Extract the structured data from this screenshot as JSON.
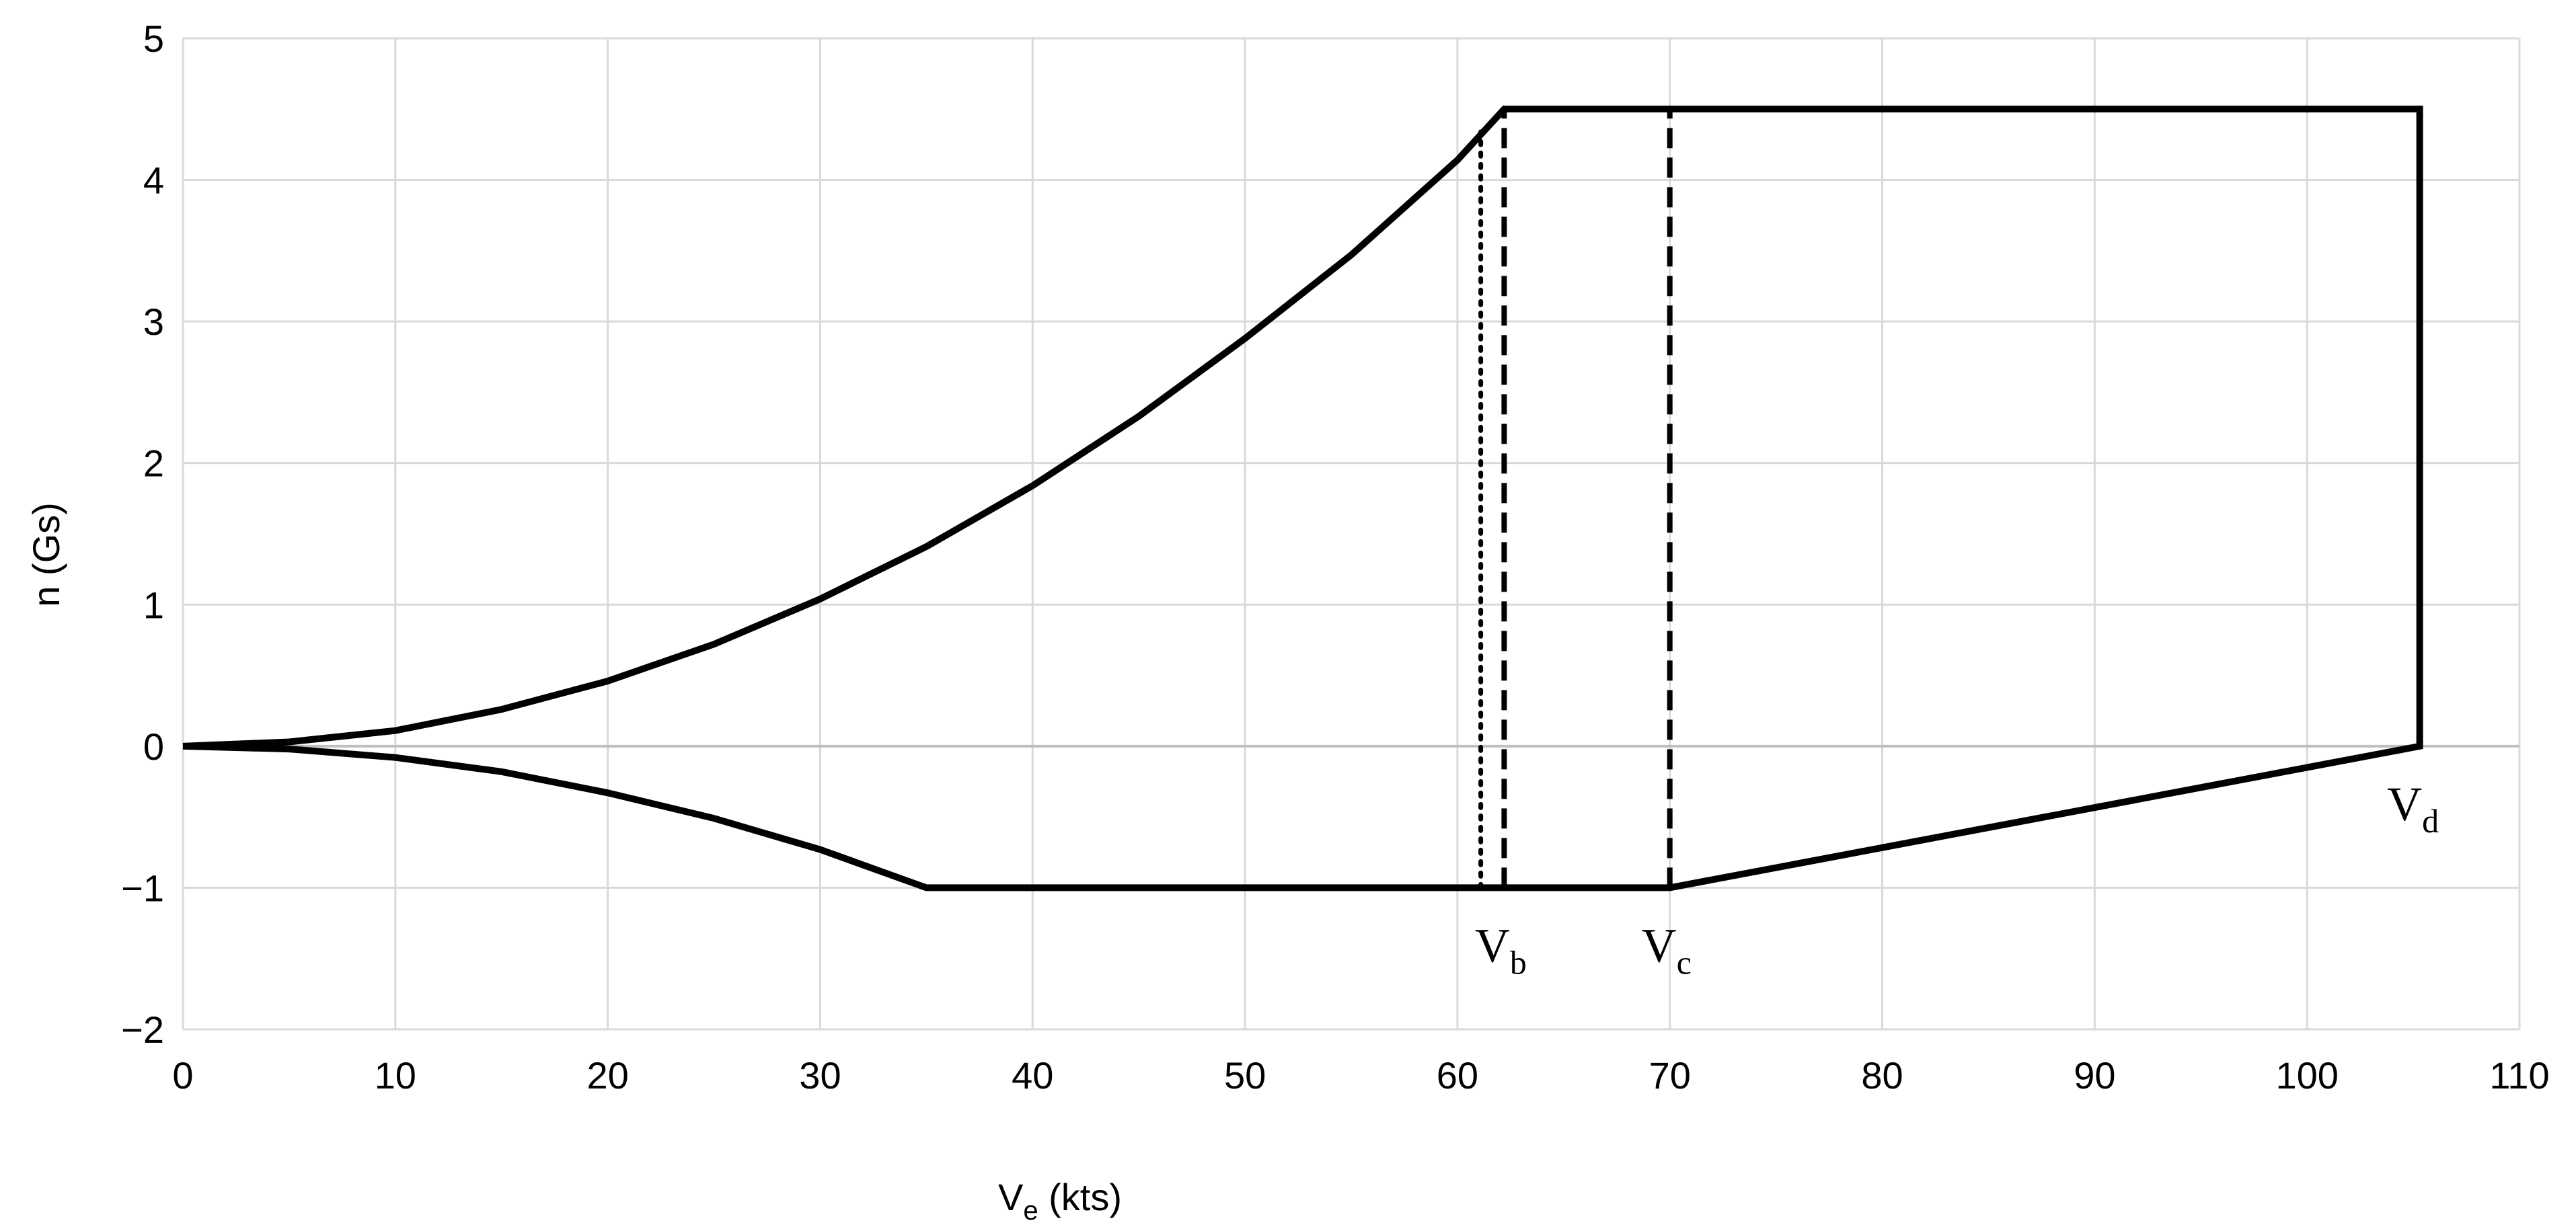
{
  "chart_data": {
    "type": "line",
    "xlabel": {
      "main": "V",
      "sub": "e",
      "rest": " (kts)"
    },
    "ylabel": "n (Gs)",
    "xlim": [
      0,
      110
    ],
    "ylim": [
      -2,
      5
    ],
    "x_ticks": [
      0,
      10,
      20,
      30,
      40,
      50,
      60,
      70,
      80,
      90,
      100,
      110
    ],
    "y_ticks": [
      -2,
      -1,
      0,
      1,
      2,
      3,
      4,
      5
    ],
    "x_tick_labels": [
      "0",
      "10",
      "20",
      "30",
      "40",
      "50",
      "60",
      "70",
      "80",
      "90",
      "100",
      "110"
    ],
    "y_tick_labels": [
      "−2",
      "−1",
      "0",
      "1",
      "2",
      "3",
      "4",
      "5"
    ],
    "grid": true,
    "legend": "none",
    "series": [
      {
        "style": "solid",
        "x": [
          0,
          5,
          10,
          15,
          20,
          25,
          30,
          35,
          40,
          45,
          50,
          55,
          60,
          62.2,
          70,
          105.3,
          105.3,
          70,
          35,
          30,
          25,
          20,
          15,
          10,
          5,
          0
        ],
        "y": [
          0,
          0.03,
          0.11,
          0.26,
          0.46,
          0.72,
          1.04,
          1.41,
          1.84,
          2.33,
          2.88,
          3.47,
          4.14,
          4.5,
          4.5,
          4.5,
          0,
          -1,
          -1,
          -0.73,
          -0.51,
          -0.33,
          -0.18,
          -0.08,
          -0.02,
          0
        ]
      },
      {
        "style": "dotted",
        "x": [
          61.1,
          61.1
        ],
        "y": [
          -1,
          4.34
        ]
      },
      {
        "style": "dashed",
        "x": [
          62.2,
          62.2
        ],
        "y": [
          -1,
          4.5
        ]
      },
      {
        "style": "dashed",
        "x": [
          70,
          70
        ],
        "y": [
          -1,
          4.5
        ]
      }
    ],
    "annotations": [
      {
        "main": "V",
        "sub": "b",
        "x": 62.2,
        "y": -1
      },
      {
        "main": "V",
        "sub": "c",
        "x": 70,
        "y": -1
      },
      {
        "main": "V",
        "sub": "d",
        "x": 105.3,
        "y": 0
      }
    ]
  }
}
